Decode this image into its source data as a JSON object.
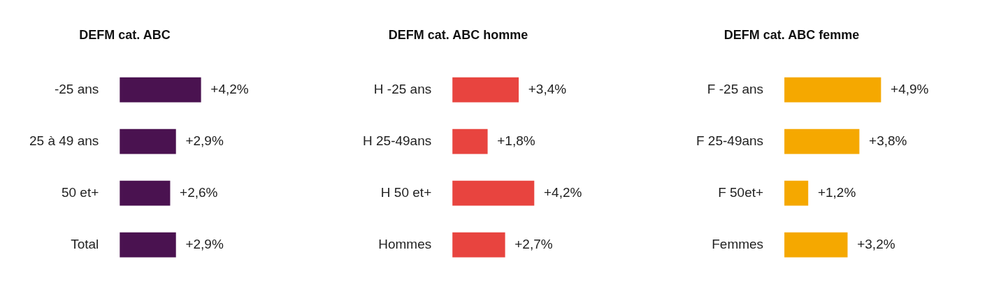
{
  "chart_data": [
    {
      "type": "bar",
      "orientation": "horizontal",
      "title": "DEFM cat. ABC",
      "categories": [
        "-25 ans",
        "25 à 49 ans",
        "50 et+",
        "Total"
      ],
      "values": [
        4.2,
        2.9,
        2.6,
        2.9
      ],
      "value_labels": [
        "+4,2%",
        "+2,9%",
        "+2,6%",
        "+2,9%"
      ],
      "color": "#4a1250",
      "tick_labels": "y"
    },
    {
      "type": "bar",
      "orientation": "horizontal",
      "title": "DEFM cat. ABC homme",
      "categories": [
        "H -25 ans",
        "H 25-49ans",
        "H 50 et+",
        "Hommes"
      ],
      "values": [
        3.4,
        1.8,
        4.2,
        2.7
      ],
      "value_labels": [
        "+3,4%",
        "+1,8%",
        "+4,2%",
        "+2,7%"
      ],
      "color": "#e8443f",
      "tick_labels": "y"
    },
    {
      "type": "bar",
      "orientation": "horizontal",
      "title": "DEFM cat. ABC femme",
      "categories": [
        "F -25 ans",
        "F 25-49ans",
        "F 50et+",
        "Femmes"
      ],
      "values": [
        4.9,
        3.8,
        1.2,
        3.2
      ],
      "value_labels": [
        "+4,9%",
        "+3,8%",
        "+1,2%",
        "+3,2%"
      ],
      "color": "#f5a800",
      "tick_labels": "y"
    }
  ]
}
